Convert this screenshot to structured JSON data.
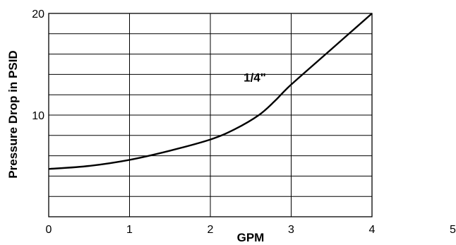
{
  "chart_data": {
    "type": "line",
    "xlabel": "GPM",
    "ylabel": "Pressure Drop in PSID",
    "xlim": [
      0,
      4
    ],
    "ylim": [
      0,
      20
    ],
    "x_ticks": [
      "0",
      "1",
      "2",
      "3",
      "4",
      "5"
    ],
    "y_ticks": [
      "10",
      "20"
    ],
    "x_gridlines": [
      1,
      2,
      3
    ],
    "y_gridlines": [
      2,
      4,
      6,
      8,
      10,
      12,
      14,
      16,
      18
    ],
    "grid": true,
    "series": [
      {
        "name": "1/4\"",
        "x": [
          0,
          0.5,
          1,
          1.5,
          2,
          2.3,
          2.6,
          2.8,
          3,
          3.5,
          4
        ],
        "y": [
          4.7,
          5.0,
          5.6,
          6.5,
          7.6,
          8.6,
          10.0,
          11.4,
          13.0,
          16.5,
          20.0
        ]
      }
    ],
    "annotations": [
      {
        "text": "1/4\"",
        "x": 2.55,
        "y": 13.7
      }
    ]
  }
}
